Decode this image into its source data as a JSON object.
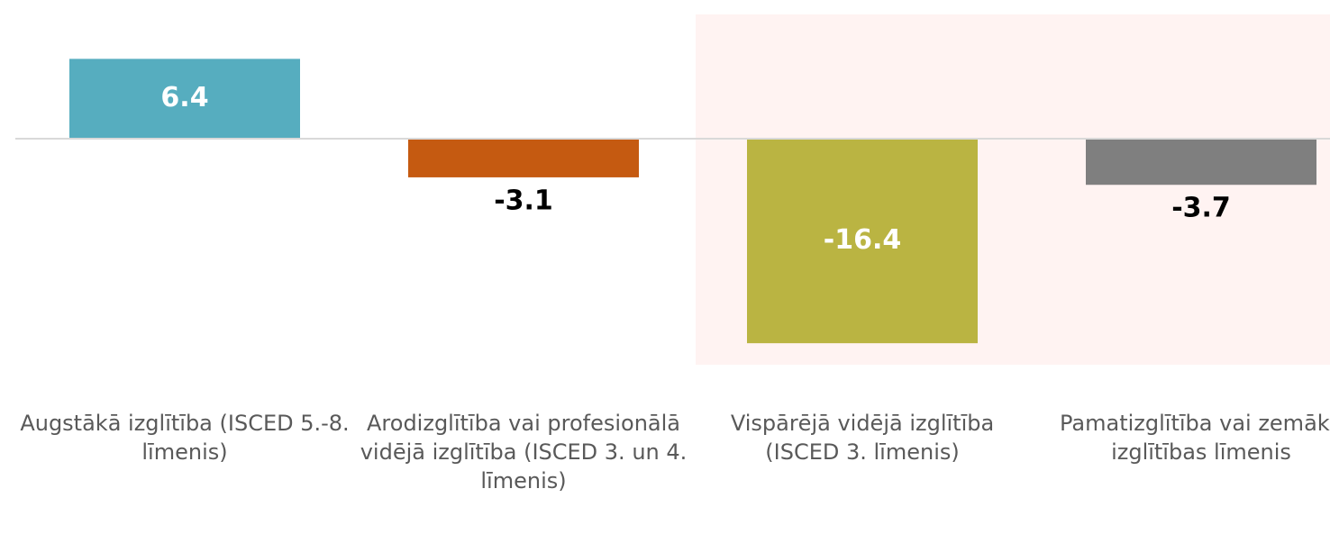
{
  "chart_data": {
    "type": "bar",
    "categories": [
      "Augstākā izglītība (ISCED 5.-8. līmenis)",
      "Arodizglītība vai profesionālā vidējā izglītība (ISCED 3. un 4. līmenis)",
      "Vispārējā vidējā izglītība (ISCED 3. līmenis)",
      "Pamatizglītība vai zemāka izglītības līmenis"
    ],
    "values": [
      6.4,
      -3.1,
      -16.4,
      -3.7
    ],
    "colors": [
      "#56adbf",
      "#c55a11",
      "#bab442",
      "#7f7f7f"
    ]
  }
}
